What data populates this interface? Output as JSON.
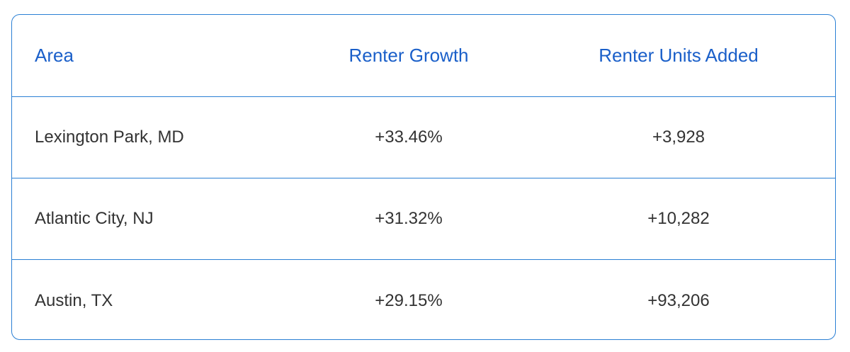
{
  "table": {
    "header": [
      "Area",
      "Renter Growth",
      "Renter Units Added"
    ],
    "rows": [
      [
        "Lexington Park, MD",
        "+33.46%",
        "+3,928"
      ],
      [
        "Atlantic City, NJ",
        "+31.32%",
        "+10,282"
      ],
      [
        "Austin, TX",
        "+29.15%",
        "+93,206"
      ]
    ]
  }
}
